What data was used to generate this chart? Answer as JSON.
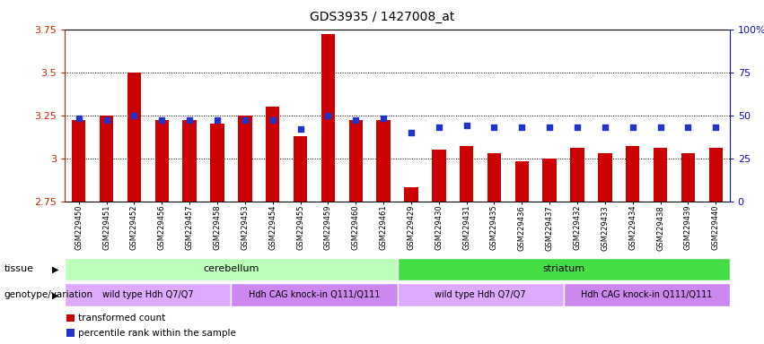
{
  "title": "GDS3935 / 1427008_at",
  "samples": [
    "GSM229450",
    "GSM229451",
    "GSM229452",
    "GSM229456",
    "GSM229457",
    "GSM229458",
    "GSM229453",
    "GSM229454",
    "GSM229455",
    "GSM229459",
    "GSM229460",
    "GSM229461",
    "GSM229429",
    "GSM229430",
    "GSM229431",
    "GSM229435",
    "GSM229436",
    "GSM229437",
    "GSM229432",
    "GSM229433",
    "GSM229434",
    "GSM229438",
    "GSM229439",
    "GSM229440"
  ],
  "transformed_count": [
    3.22,
    3.25,
    3.5,
    3.22,
    3.22,
    3.2,
    3.25,
    3.3,
    3.13,
    3.72,
    3.22,
    3.22,
    2.83,
    3.05,
    3.07,
    3.03,
    2.98,
    3.0,
    3.06,
    3.03,
    3.07,
    3.06,
    3.03,
    3.06
  ],
  "percentile_rank": [
    48,
    47,
    50,
    47,
    47,
    47,
    47,
    47,
    42,
    50,
    47,
    48,
    40,
    43,
    44,
    43,
    43,
    43,
    43,
    43,
    43,
    43,
    43,
    43
  ],
  "ylim_left": [
    2.75,
    3.75
  ],
  "ylim_right": [
    0,
    100
  ],
  "yticks_left": [
    2.75,
    3.0,
    3.25,
    3.5,
    3.75
  ],
  "yticks_right": [
    0,
    25,
    50,
    75,
    100
  ],
  "ytick_labels_left": [
    "2.75",
    "3",
    "3.25",
    "3.5",
    "3.75"
  ],
  "ytick_labels_right": [
    "0",
    "25",
    "50",
    "75",
    "100%"
  ],
  "bar_color": "#cc0000",
  "dot_color": "#2233cc",
  "bar_bottom": 2.75,
  "tissue_groups": [
    {
      "label": "cerebellum",
      "start": 0,
      "end": 11,
      "color": "#bbffbb"
    },
    {
      "label": "striatum",
      "start": 12,
      "end": 23,
      "color": "#44dd44"
    }
  ],
  "genotype_groups": [
    {
      "label": "wild type Hdh Q7/Q7",
      "start": 0,
      "end": 5,
      "color": "#ddaaff"
    },
    {
      "label": "Hdh CAG knock-in Q111/Q111",
      "start": 6,
      "end": 11,
      "color": "#cc88ee"
    },
    {
      "label": "wild type Hdh Q7/Q7",
      "start": 12,
      "end": 17,
      "color": "#ddaaff"
    },
    {
      "label": "Hdh CAG knock-in Q111/Q111",
      "start": 18,
      "end": 23,
      "color": "#cc88ee"
    }
  ],
  "left_axis_color": "#cc2200",
  "right_axis_color": "#1111bb",
  "background_color": "#ffffff",
  "tissue_row_label": "tissue",
  "genotype_row_label": "genotype/variation",
  "legend_items": [
    {
      "label": "transformed count",
      "color": "#cc0000"
    },
    {
      "label": "percentile rank within the sample",
      "color": "#2233cc"
    }
  ]
}
